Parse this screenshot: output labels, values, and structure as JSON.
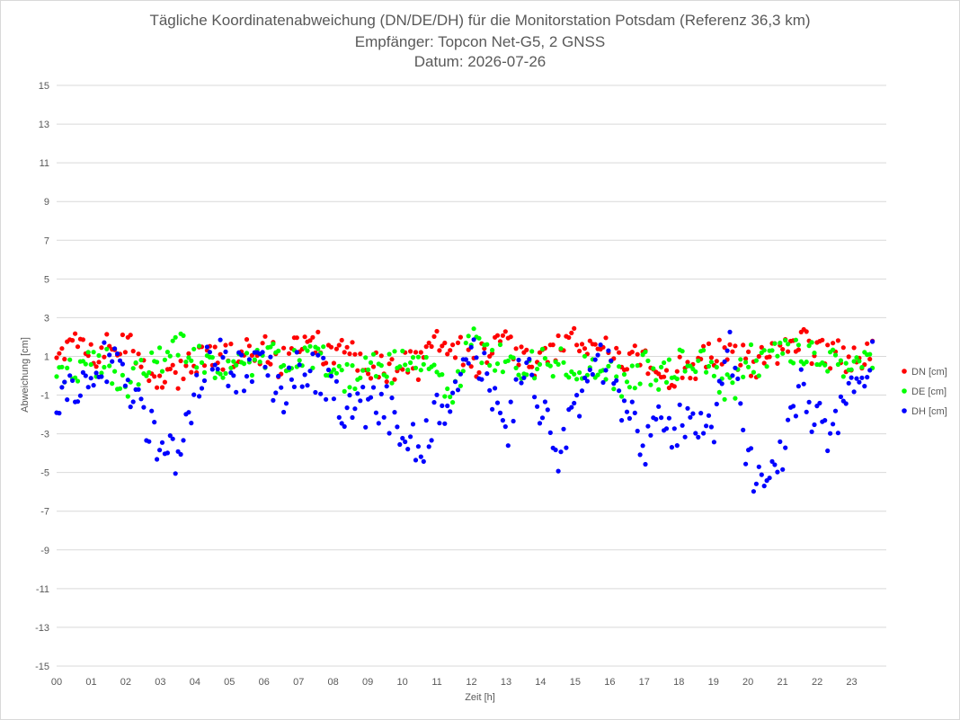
{
  "chart_data": {
    "type": "scatter",
    "title_lines": [
      "Tägliche Koordinatenabweichung (DN/DE/DH) für die Monitorstation Potsdam (Referenz 36,3 km)",
      "Empfänger: Topcon Net-G5, 2 GNSS",
      "Datum: 2026-07-26"
    ],
    "xlabel": "Zeit [h]",
    "ylabel": "Abweichung [cm]",
    "xlim": [
      0,
      24
    ],
    "ylim": [
      -15,
      15
    ],
    "x_ticks": [
      "00",
      "01",
      "02",
      "03",
      "04",
      "05",
      "06",
      "07",
      "08",
      "09",
      "10",
      "11",
      "12",
      "13",
      "14",
      "15",
      "16",
      "17",
      "18",
      "19",
      "20",
      "21",
      "22",
      "23"
    ],
    "y_ticks": [
      15,
      13,
      11,
      9,
      7,
      5,
      3,
      1,
      -1,
      -3,
      -5,
      -7,
      -9,
      -11,
      -13,
      -15
    ],
    "y_tick_labels": [
      "15",
      "13",
      "11",
      "9",
      "7",
      "5",
      "3",
      "1",
      "-1",
      "-3",
      "-5",
      "-7",
      "-9",
      "-11",
      "-13",
      "-15"
    ],
    "grid": "horizontal",
    "legend_position": "right",
    "series": [
      {
        "name": "DN [cm]",
        "color": "#ff0000",
        "anchors": [
          [
            0.0,
            1.2
          ],
          [
            0.5,
            1.8
          ],
          [
            1.0,
            0.9
          ],
          [
            1.5,
            1.4
          ],
          [
            2.0,
            2.0
          ],
          [
            2.5,
            0.5
          ],
          [
            3.0,
            -0.4
          ],
          [
            3.5,
            0.0
          ],
          [
            4.0,
            0.6
          ],
          [
            4.5,
            1.0
          ],
          [
            5.0,
            0.9
          ],
          [
            5.5,
            1.5
          ],
          [
            6.0,
            1.3
          ],
          [
            6.5,
            0.6
          ],
          [
            7.0,
            1.4
          ],
          [
            7.5,
            1.6
          ],
          [
            8.0,
            0.9
          ],
          [
            8.5,
            1.2
          ],
          [
            9.0,
            0.5
          ],
          [
            9.5,
            0.3
          ],
          [
            10.0,
            0.7
          ],
          [
            10.5,
            0.5
          ],
          [
            11.0,
            2.0
          ],
          [
            11.5,
            1.7
          ],
          [
            12.0,
            0.4
          ],
          [
            12.5,
            1.5
          ],
          [
            13.0,
            1.8
          ],
          [
            13.5,
            1.0
          ],
          [
            14.0,
            0.6
          ],
          [
            14.5,
            1.5
          ],
          [
            15.0,
            1.8
          ],
          [
            15.5,
            1.6
          ],
          [
            16.0,
            1.5
          ],
          [
            16.5,
            0.9
          ],
          [
            17.0,
            0.8
          ],
          [
            17.5,
            0.1
          ],
          [
            18.0,
            0.2
          ],
          [
            18.5,
            0.6
          ],
          [
            19.0,
            1.0
          ],
          [
            19.5,
            1.3
          ],
          [
            20.0,
            0.6
          ],
          [
            20.5,
            0.8
          ],
          [
            21.0,
            1.4
          ],
          [
            21.5,
            1.9
          ],
          [
            22.0,
            1.0
          ],
          [
            22.5,
            1.2
          ],
          [
            23.0,
            0.8
          ],
          [
            23.6,
            1.0
          ]
        ],
        "spread": 0.8
      },
      {
        "name": "DE [cm]",
        "color": "#00ff00",
        "anchors": [
          [
            0.0,
            0.4
          ],
          [
            0.5,
            0.3
          ],
          [
            1.0,
            0.6
          ],
          [
            1.5,
            0.6
          ],
          [
            2.0,
            -0.6
          ],
          [
            2.5,
            0.5
          ],
          [
            3.0,
            0.8
          ],
          [
            3.5,
            1.5
          ],
          [
            4.0,
            1.2
          ],
          [
            4.5,
            0.6
          ],
          [
            5.0,
            0.2
          ],
          [
            5.5,
            0.5
          ],
          [
            6.0,
            0.8
          ],
          [
            6.5,
            0.9
          ],
          [
            7.0,
            1.2
          ],
          [
            7.5,
            1.1
          ],
          [
            8.0,
            0.2
          ],
          [
            8.5,
            -0.2
          ],
          [
            9.0,
            0.9
          ],
          [
            9.5,
            0.3
          ],
          [
            10.0,
            0.6
          ],
          [
            10.5,
            0.4
          ],
          [
            11.0,
            0.1
          ],
          [
            11.5,
            -0.9
          ],
          [
            12.0,
            1.8
          ],
          [
            12.5,
            0.8
          ],
          [
            13.0,
            0.9
          ],
          [
            13.5,
            0.4
          ],
          [
            14.0,
            0.7
          ],
          [
            14.5,
            0.7
          ],
          [
            15.0,
            0.5
          ],
          [
            15.5,
            0.6
          ],
          [
            16.0,
            0.0
          ],
          [
            16.5,
            -0.6
          ],
          [
            17.0,
            0.5
          ],
          [
            17.5,
            0.0
          ],
          [
            18.0,
            0.6
          ],
          [
            18.5,
            0.9
          ],
          [
            19.0,
            0.2
          ],
          [
            19.5,
            -0.9
          ],
          [
            20.0,
            0.9
          ],
          [
            20.5,
            0.6
          ],
          [
            21.0,
            1.3
          ],
          [
            21.5,
            1.2
          ],
          [
            22.0,
            1.0
          ],
          [
            22.5,
            0.5
          ],
          [
            23.0,
            0.9
          ],
          [
            23.6,
            1.0
          ]
        ],
        "spread": 0.8
      },
      {
        "name": "DH [cm]",
        "color": "#0000ff",
        "anchors": [
          [
            0.0,
            -1.5
          ],
          [
            0.5,
            -0.5
          ],
          [
            1.0,
            0.5
          ],
          [
            1.5,
            0.6
          ],
          [
            2.0,
            -0.5
          ],
          [
            2.5,
            -2.0
          ],
          [
            3.0,
            -3.5
          ],
          [
            3.5,
            -4.5
          ],
          [
            4.0,
            -0.5
          ],
          [
            4.5,
            1.5
          ],
          [
            5.0,
            0.0
          ],
          [
            5.5,
            0.0
          ],
          [
            6.0,
            0.8
          ],
          [
            6.5,
            -1.5
          ],
          [
            7.0,
            0.5
          ],
          [
            7.5,
            0.3
          ],
          [
            8.0,
            -0.8
          ],
          [
            8.5,
            -1.8
          ],
          [
            9.0,
            -1.6
          ],
          [
            9.5,
            -1.4
          ],
          [
            10.0,
            -3.0
          ],
          [
            10.5,
            -4.0
          ],
          [
            11.0,
            -2.0
          ],
          [
            11.5,
            -1.5
          ],
          [
            12.0,
            1.5
          ],
          [
            12.5,
            0.0
          ],
          [
            13.0,
            -3.5
          ],
          [
            13.5,
            1.0
          ],
          [
            14.0,
            -1.5
          ],
          [
            14.5,
            -4.0
          ],
          [
            15.0,
            -1.5
          ],
          [
            15.5,
            0.5
          ],
          [
            16.0,
            0.5
          ],
          [
            16.5,
            -2.0
          ],
          [
            17.0,
            -3.5
          ],
          [
            17.5,
            -2.5
          ],
          [
            18.0,
            -2.5
          ],
          [
            18.5,
            -2.0
          ],
          [
            19.0,
            -2.5
          ],
          [
            19.5,
            1.5
          ],
          [
            20.0,
            -4.5
          ],
          [
            20.5,
            -6.0
          ],
          [
            21.0,
            -4.0
          ],
          [
            21.5,
            0.0
          ],
          [
            22.0,
            -2.5
          ],
          [
            22.5,
            -3.0
          ],
          [
            23.0,
            -0.5
          ],
          [
            23.6,
            1.0
          ]
        ],
        "spread": 1.2
      }
    ]
  }
}
